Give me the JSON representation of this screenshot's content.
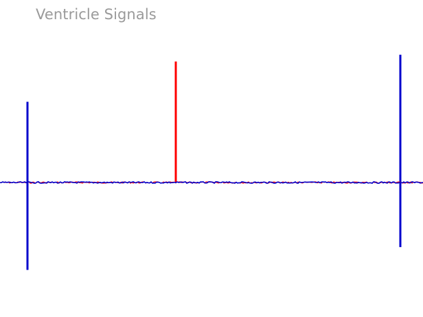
{
  "chart_data": {
    "type": "line",
    "title": "Ventricle Signals",
    "xlabel": "",
    "ylabel": "",
    "grid": false,
    "legend": "none",
    "baseline": 0,
    "series": [
      {
        "color": "#ff0000",
        "spikes": [
          {
            "x": 256,
            "y": 1.8
          }
        ]
      },
      {
        "color": "#0000cc",
        "spikes": [
          {
            "x": 40,
            "y": 1.2,
            "y_neg": -1.3
          },
          {
            "x": 583,
            "y": 1.9,
            "y_neg": -0.96
          }
        ]
      }
    ]
  }
}
